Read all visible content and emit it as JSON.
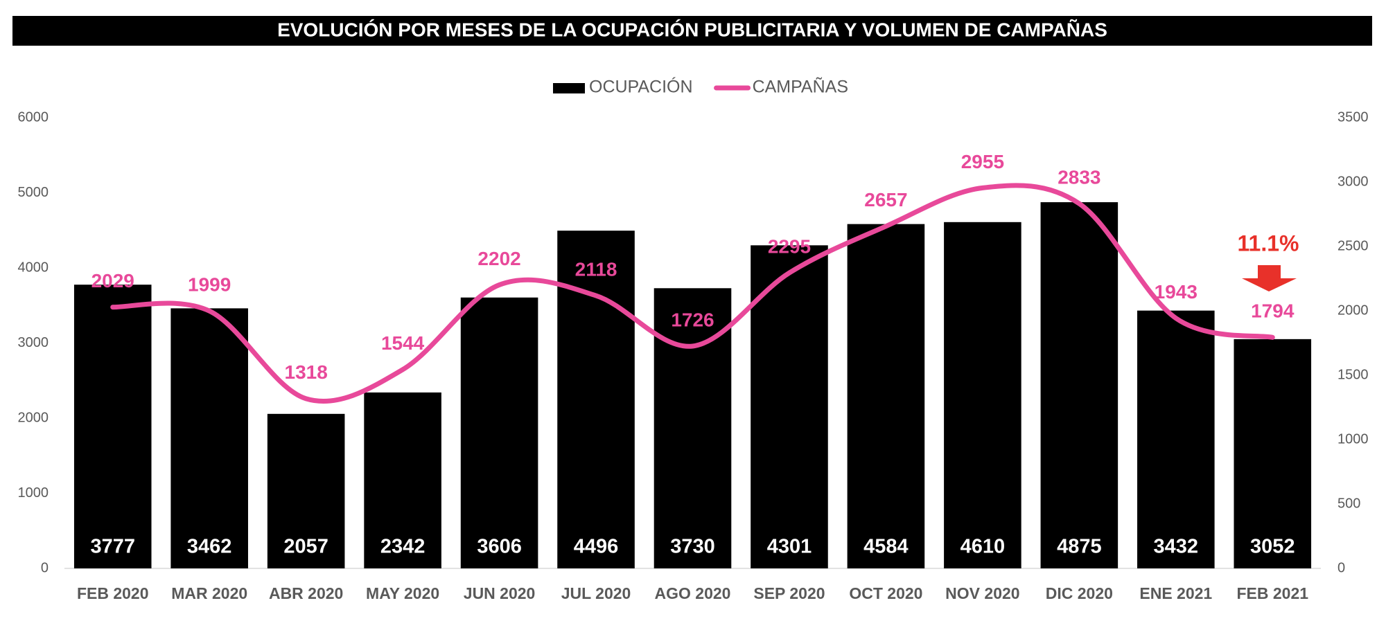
{
  "chart_data": {
    "type": "bar-line",
    "title": "EVOLUCIÓN POR MESES DE LA OCUPACIÓN PUBLICITARIA Y VOLUMEN DE CAMPAÑAS",
    "categories": [
      "FEB 2020",
      "MAR 2020",
      "ABR 2020",
      "MAY 2020",
      "JUN 2020",
      "JUL 2020",
      "AGO 2020",
      "SEP 2020",
      "OCT 2020",
      "NOV 2020",
      "DIC 2020",
      "ENE 2021",
      "FEB 2021"
    ],
    "series": [
      {
        "name": "OCUPACIÓN",
        "type": "bar",
        "color": "#000000",
        "values": [
          3777,
          3462,
          2057,
          2342,
          3606,
          4496,
          3730,
          4301,
          4584,
          4610,
          4875,
          3432,
          3052
        ]
      },
      {
        "name": "CAMPAÑAS",
        "type": "line",
        "axis": "y2",
        "color": "#e8499a",
        "values": [
          2029,
          1999,
          1318,
          1544,
          2202,
          2118,
          1726,
          2295,
          2657,
          2955,
          2833,
          1943,
          1794
        ]
      }
    ],
    "ylim": [
      0,
      6000
    ],
    "yticks": [
      0,
      1000,
      2000,
      3000,
      4000,
      5000,
      6000
    ],
    "y2lim": [
      0,
      3500
    ],
    "y2ticks": [
      0,
      500,
      1000,
      1500,
      2000,
      2500,
      3000,
      3500
    ],
    "legend": "top",
    "annotation": {
      "text": "11.1%",
      "color": "#e8312a"
    }
  }
}
